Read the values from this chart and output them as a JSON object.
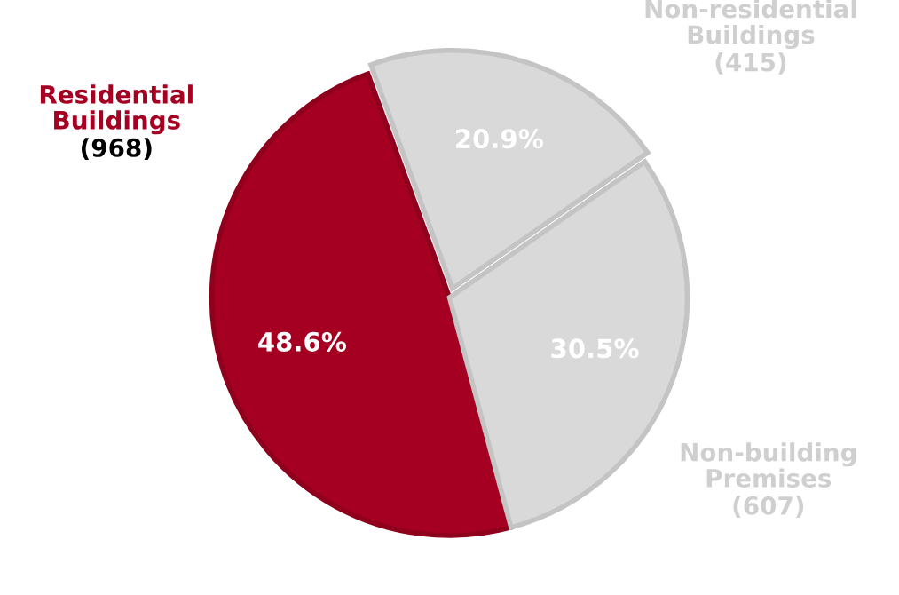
{
  "chart_data": {
    "type": "pie",
    "categories": [
      "Residential Buildings (968)",
      "Non-residential Buildings (415)",
      "Non-building Premises (607)"
    ],
    "values": [
      48.6,
      20.9,
      30.5
    ],
    "colors": [
      "#a50021",
      "#d9d9d9",
      "#d9d9d9"
    ],
    "value_labels": [
      "48.6%",
      "20.9%",
      "30.5%"
    ]
  }
}
